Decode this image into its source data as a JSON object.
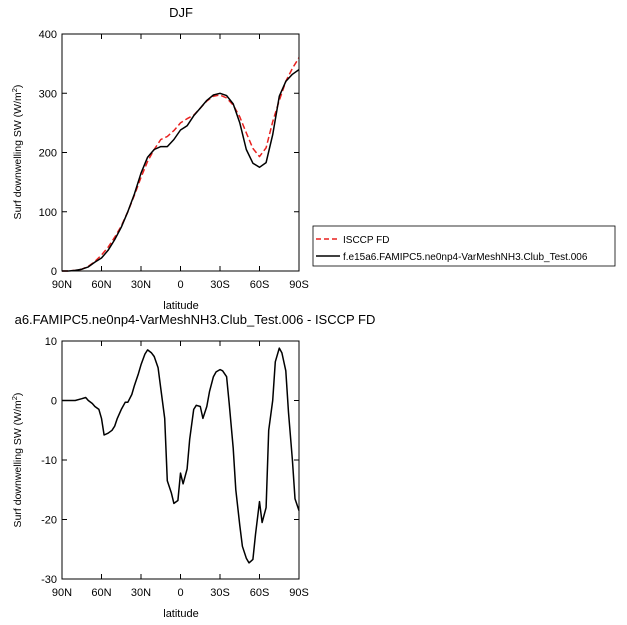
{
  "chart_data": [
    {
      "type": "line",
      "title": "DJF",
      "xlabel": "latitude",
      "ylabel": "Surf downwelling SW (W/m",
      "ylabel_sup": "2",
      "ylabel_end": ")",
      "xlim": [
        90,
        -90
      ],
      "ylim": [
        0,
        400
      ],
      "xticks": [
        90,
        60,
        30,
        0,
        -30,
        -60,
        -90
      ],
      "xtick_labels": [
        "90N",
        "60N",
        "30N",
        "0",
        "30S",
        "60S",
        "90S"
      ],
      "yticks": [
        0,
        100,
        200,
        300,
        400
      ],
      "ytick_labels": [
        "0",
        "100",
        "200",
        "300",
        "400"
      ],
      "legend": {
        "placement": "right",
        "entries": [
          {
            "label": "ISCCP FD",
            "color": "#e8211f",
            "dash": "dashed"
          },
          {
            "label": "f.e15a6.FAMIPC5.ne0np4-VarMeshNH3.Club_Test.006",
            "color": "#000000",
            "dash": "solid"
          }
        ]
      },
      "series": [
        {
          "name": "ISCCP FD",
          "color": "#e8211f",
          "dash": "dashed",
          "x": [
            90,
            85,
            80,
            75,
            70,
            65,
            60,
            55,
            50,
            45,
            40,
            35,
            30,
            25,
            20,
            15,
            10,
            5,
            0,
            -5,
            -10,
            -15,
            -20,
            -25,
            -30,
            -35,
            -40,
            -45,
            -50,
            -55,
            -60,
            -65,
            -70,
            -75,
            -80,
            -85,
            -90
          ],
          "values": [
            0,
            0,
            1,
            3,
            8,
            16,
            27,
            40,
            57,
            76,
            100,
            128,
            158,
            185,
            205,
            222,
            227,
            237,
            250,
            257,
            263,
            275,
            287,
            295,
            297,
            292,
            280,
            260,
            233,
            207,
            193,
            208,
            252,
            288,
            320,
            342,
            360
          ]
        },
        {
          "name": "f.e15a6.FAMIPC5.ne0np4-VarMeshNH3.Club_Test.006",
          "color": "#000000",
          "dash": "solid",
          "x": [
            90,
            85,
            80,
            75,
            70,
            65,
            60,
            55,
            50,
            45,
            40,
            35,
            30,
            25,
            20,
            15,
            10,
            5,
            0,
            -5,
            -10,
            -15,
            -20,
            -25,
            -30,
            -35,
            -40,
            -45,
            -50,
            -55,
            -60,
            -65,
            -70,
            -75,
            -80,
            -85,
            -90
          ],
          "values": [
            0,
            0,
            1,
            3,
            7,
            15,
            22,
            35,
            53,
            74,
            100,
            130,
            165,
            192,
            205,
            210,
            210,
            222,
            238,
            245,
            262,
            275,
            288,
            297,
            300,
            296,
            282,
            250,
            205,
            182,
            175,
            183,
            230,
            295,
            320,
            332,
            340
          ]
        }
      ]
    },
    {
      "type": "line",
      "title": "a6.FAMIPC5.ne0np4-VarMeshNH3.Club_Test.006 - ISCCP FD",
      "xlabel": "latitude",
      "ylabel": "Surf downwelling SW (W/m",
      "ylabel_sup": "2",
      "ylabel_end": ")",
      "xlim": [
        90,
        -90
      ],
      "ylim": [
        -30,
        10
      ],
      "xticks": [
        90,
        60,
        30,
        0,
        -30,
        -60,
        -90
      ],
      "xtick_labels": [
        "90N",
        "60N",
        "30N",
        "0",
        "30S",
        "60S",
        "90S"
      ],
      "yticks": [
        -30,
        -20,
        -10,
        0,
        10
      ],
      "ytick_labels": [
        "-30",
        "-20",
        "-10",
        "0",
        "10"
      ],
      "series": [
        {
          "color": "#000000",
          "dash": "solid",
          "x": [
            90,
            85,
            80,
            75,
            72,
            70,
            67,
            65,
            62,
            60,
            58,
            55,
            52,
            50,
            48,
            45,
            42,
            40,
            37,
            35,
            32,
            30,
            27,
            25,
            22,
            20,
            17,
            15,
            12,
            10,
            7,
            5,
            2,
            0,
            -2,
            -5,
            -7,
            -10,
            -12,
            -15,
            -17,
            -20,
            -22,
            -25,
            -27,
            -30,
            -32,
            -35,
            -37,
            -40,
            -42,
            -45,
            -47,
            -50,
            -52,
            -55,
            -57,
            -60,
            -62,
            -65,
            -67,
            -70,
            -72,
            -75,
            -77,
            -80,
            -82,
            -85,
            -87,
            -90
          ],
          "values": [
            0,
            0,
            0,
            0.3,
            0.5,
            0,
            -0.5,
            -1,
            -1.5,
            -3,
            -5.8,
            -5.5,
            -5,
            -4.3,
            -3,
            -1.5,
            -0.3,
            -0.3,
            1,
            2.5,
            4.5,
            6,
            7.8,
            8.5,
            8,
            7.4,
            5.5,
            2,
            -3,
            -13.5,
            -15.5,
            -17.3,
            -16.8,
            -12.2,
            -14,
            -11.5,
            -6.5,
            -1.5,
            -0.8,
            -1,
            -3,
            -1,
            1.5,
            4,
            4.8,
            5.2,
            5,
            4,
            -0.5,
            -8,
            -15,
            -21,
            -24.5,
            -26.5,
            -27.3,
            -26.7,
            -22.5,
            -17,
            -20.5,
            -18,
            -5,
            0,
            6.5,
            8.8,
            8,
            5,
            -2,
            -10,
            -16.5,
            -18.5
          ]
        }
      ]
    }
  ]
}
